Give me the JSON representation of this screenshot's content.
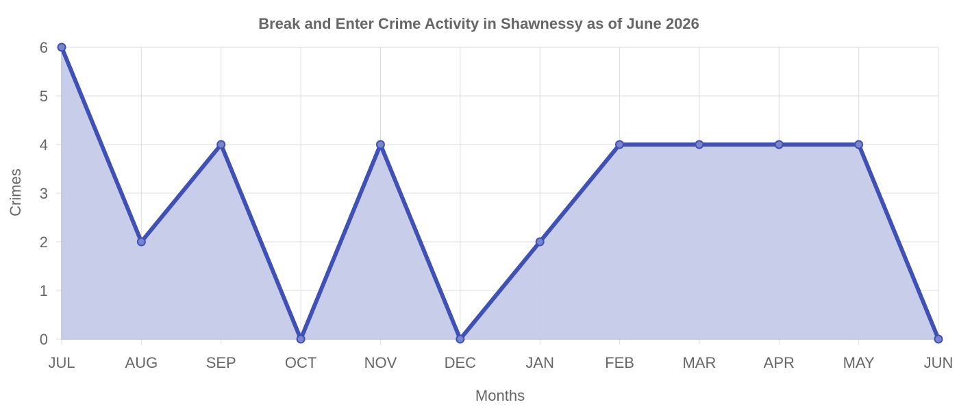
{
  "chart_data": {
    "type": "area",
    "title": "Break and Enter Crime Activity in Shawnessy as of June 2026",
    "xlabel": "Months",
    "ylabel": "Crimes",
    "categories": [
      "JUL",
      "AUG",
      "SEP",
      "OCT",
      "NOV",
      "DEC",
      "JAN",
      "FEB",
      "MAR",
      "APR",
      "MAY",
      "JUN"
    ],
    "series": [
      {
        "values": [
          6,
          2,
          4,
          0,
          4,
          0,
          2,
          4,
          4,
          4,
          4,
          0
        ]
      }
    ],
    "ylim": [
      0,
      6
    ],
    "yticks": [
      0,
      1,
      2,
      3,
      4,
      5,
      6
    ],
    "grid": true,
    "legend": "none",
    "colors": {
      "line": "#3f51b5",
      "fill": "#c5cae9",
      "point_fill": "#7986cb"
    }
  }
}
